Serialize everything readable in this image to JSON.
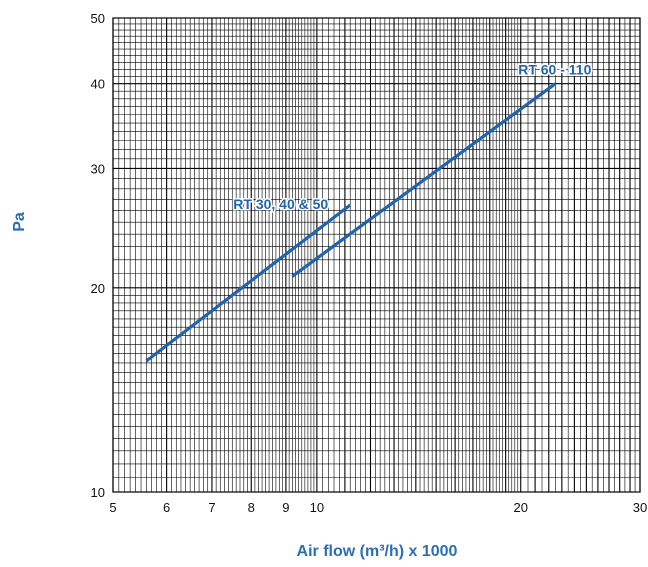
{
  "chart_data": {
    "type": "line",
    "xscale": "log",
    "yscale": "log",
    "xlim": [
      5,
      30
    ],
    "ylim": [
      10,
      50
    ],
    "xticks": [
      "5",
      "6",
      "7",
      "8",
      "9",
      "10",
      "20",
      "30"
    ],
    "yticks": [
      "10",
      "20",
      "30",
      "40",
      "50"
    ],
    "xlabel": "Air flow (m³/h) x 1000",
    "ylabel": "Pa",
    "grid": true,
    "legend": "none",
    "series": [
      {
        "name": "RT 30, 40 & 50",
        "color": "#1f64ad",
        "x": [
          5.6,
          11.2
        ],
        "y": [
          15.6,
          26.5
        ]
      },
      {
        "name": "RT 60 - 110",
        "color": "#1f64ad",
        "x": [
          9.2,
          22.5
        ],
        "y": [
          20.8,
          40.0
        ]
      }
    ]
  }
}
